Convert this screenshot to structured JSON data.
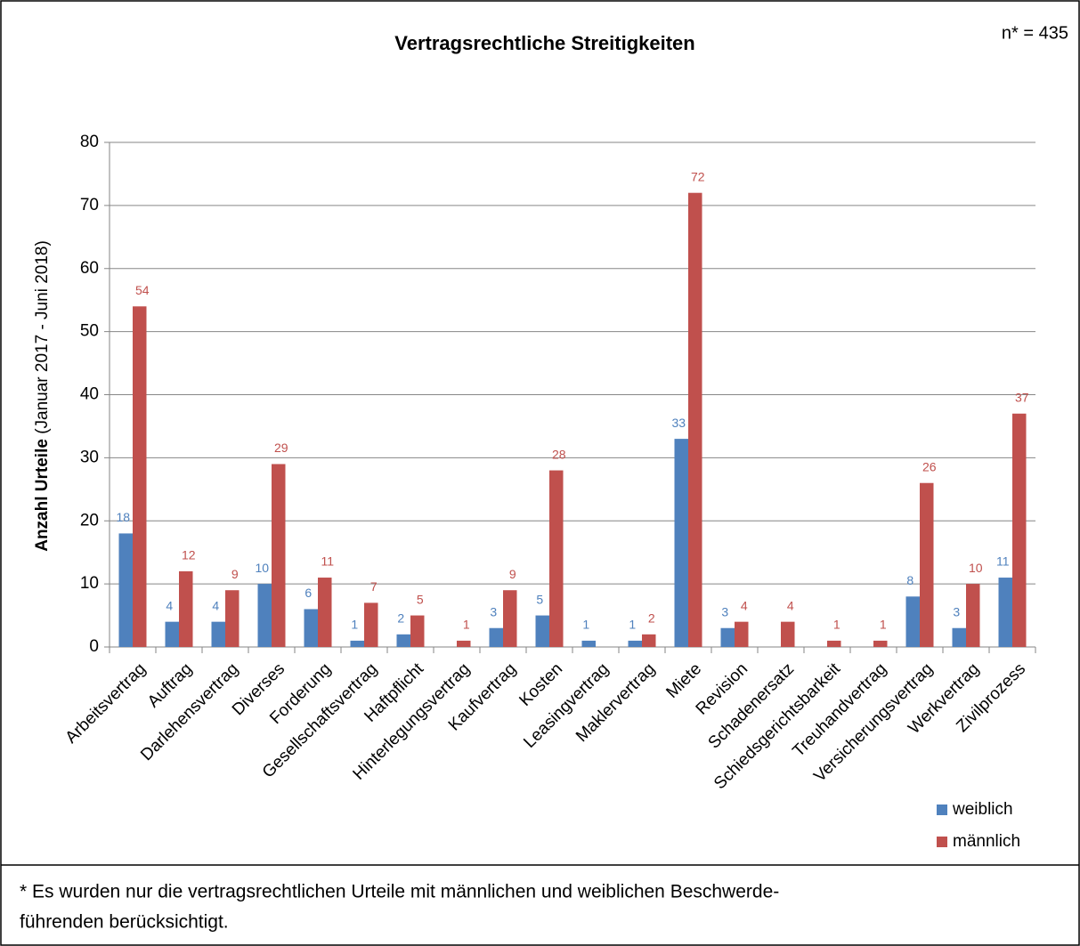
{
  "chart_data": {
    "type": "bar",
    "title": "Vertragsrechtliche Streitigkeiten",
    "annotation": "n* = 435",
    "y_label": "Anzahl Urteile",
    "y_label_note": "(Januar 2017 - Juni 2018)",
    "categories": [
      "Arbeitsvertrag",
      "Auftrag",
      "Darlehensvertrag",
      "Diverses",
      "Forderung",
      "Gesellschaftsvertrag",
      "Haftpflicht",
      "Hinterlegungsvertrag",
      "Kaufvertrag",
      "Kosten",
      "Leasingvertrag",
      "Maklervertrag",
      "Miete",
      "Revision",
      "Schadenersatz",
      "Schiedsgerichtsbarkeit",
      "Treuhandvertrag",
      "Versicherungsvertrag",
      "Werkvertrag",
      "Zivilprozess"
    ],
    "series": [
      {
        "name": "weiblich",
        "color": "#4f81bd",
        "values": [
          18,
          4,
          4,
          10,
          6,
          1,
          2,
          null,
          3,
          5,
          1,
          1,
          33,
          3,
          null,
          null,
          null,
          8,
          3,
          11
        ]
      },
      {
        "name": "männlich",
        "color": "#c0504d",
        "values": [
          54,
          12,
          9,
          29,
          11,
          7,
          5,
          1,
          9,
          28,
          null,
          2,
          72,
          4,
          4,
          1,
          1,
          26,
          10,
          37
        ]
      }
    ],
    "ylim": [
      0,
      80
    ],
    "yticks": [
      0,
      10,
      20,
      30,
      40,
      50,
      60,
      70,
      80
    ],
    "grid": true,
    "legend": "lower right",
    "footnote": [
      "* Es wurden nur die vertragsrechtlichen Urteile mit männlichen und weiblichen Beschwerde-",
      "führenden berücksichtigt."
    ]
  }
}
